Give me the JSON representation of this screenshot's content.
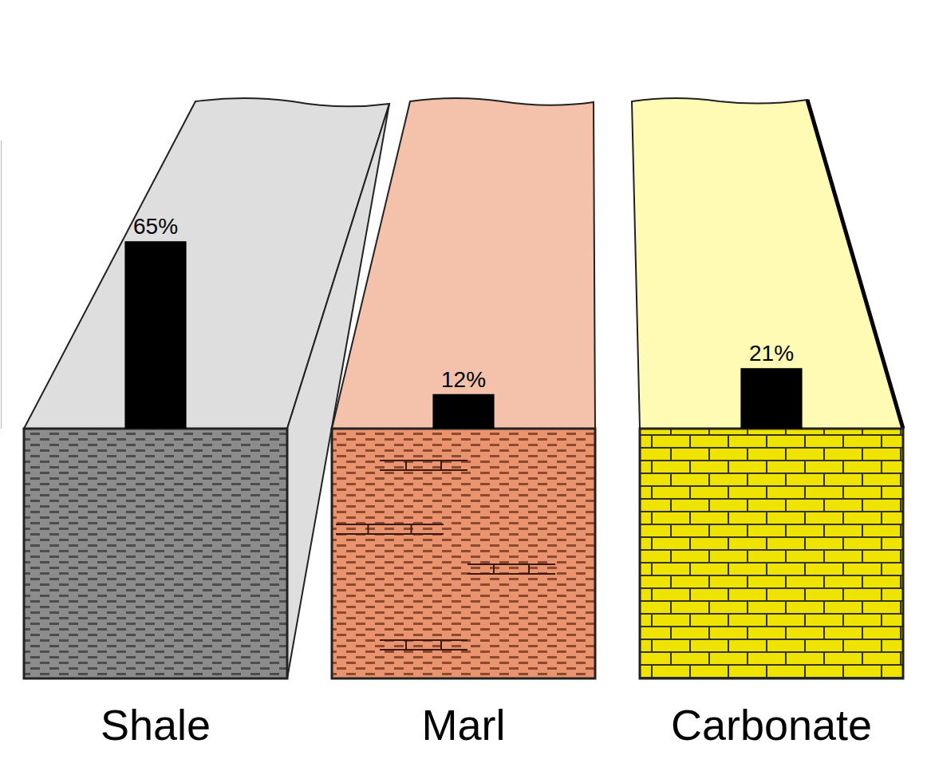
{
  "chart_data": {
    "type": "bar",
    "categories": [
      "Shale",
      "Marl",
      "Carbonate"
    ],
    "values": [
      65,
      12,
      21
    ],
    "value_labels": [
      "65%",
      "12%",
      "21%"
    ],
    "color": "#000000",
    "data_labels": true,
    "ylim": [
      0,
      100
    ],
    "yticks": [],
    "tick_labels": "x",
    "grid": false
  }
}
